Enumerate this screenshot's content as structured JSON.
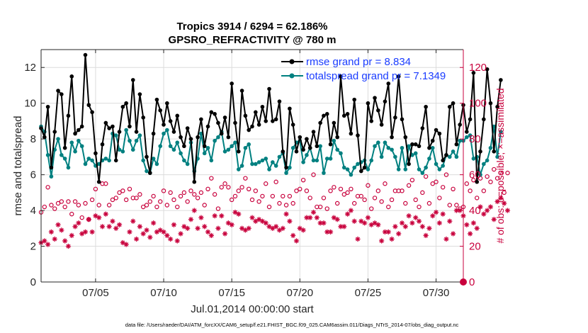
{
  "figure": {
    "title_line1": "Tropics 3914 / 6294 = 62.186%",
    "title_line2": "GPSRO_REFRACTIVITY @ 780 m",
    "footer": "data file: /Users/raeder/DAI/ATM_forcXX/CAM6_setup/f.e21.FHIST_BGC.f09_025.CAM6assim.011/Diags_NTrS_2014-07/obs_diag_output.nc"
  },
  "colors": {
    "rmse": "#000000",
    "spread": "#008080",
    "obs": "#c8003c",
    "legend_text": "#1a3cff"
  },
  "chart_data": {
    "type": "line",
    "title": "Tropics 3914 / 6294 = 62.186%",
    "subtitle": "GPSRO_REFRACTIVITY @ 780 m",
    "xlabel": "Jul.01,2014 00:00:00 start",
    "ylabel": "rmse and totalspread",
    "y2label": "# of obs: o=possible; ×=assimilated",
    "xlim": [
      1,
      32
    ],
    "ylim": [
      0,
      13
    ],
    "y2lim": [
      0,
      130
    ],
    "x_ticks": [
      5,
      10,
      15,
      20,
      25,
      30
    ],
    "x_tick_labels": [
      "07/05",
      "07/10",
      "07/15",
      "07/20",
      "07/25",
      "07/30"
    ],
    "y_ticks": [
      0,
      2,
      4,
      6,
      8,
      10,
      12
    ],
    "y2_ticks": [
      0,
      20,
      40,
      60,
      80,
      100,
      120
    ],
    "grid": true,
    "legend": [
      "rmse grand pr = 8.834",
      "totalspread grand pr = 7.1349"
    ],
    "legend_position": "top-right",
    "x_start": 1.0,
    "x_step": 0.25,
    "series": [
      {
        "name": "rmse grand pr = 8.834",
        "axis": "left",
        "marker": "filled-circle",
        "values": [
          8.6,
          8.1,
          9.8,
          6.4,
          8.4,
          10.7,
          10.5,
          7.5,
          9.3,
          11.5,
          8.3,
          8.5,
          8.7,
          12.7,
          9.9,
          9.5,
          7.2,
          5.6,
          7.7,
          8.9,
          8.6,
          8.7,
          6.8,
          8.4,
          9.8,
          10.0,
          8.7,
          11.3,
          8.4,
          10.5,
          9.2,
          7.0,
          6.1,
          8.3,
          10.2,
          9.6,
          8.8,
          10.0,
          9.0,
          8.4,
          9.3,
          8.1,
          7.6,
          8.6,
          8.0,
          5.6,
          8.1,
          9.1,
          7.6,
          8.7,
          9.5,
          9.4,
          8.9,
          8.3,
          9.2,
          8.1,
          11.1,
          8.9,
          7.3,
          10.7,
          9.3,
          8.5,
          8.7,
          9.5,
          8.8,
          9.8,
          9.0,
          10.8,
          9.0,
          9.1,
          10.1,
          7.3,
          6.4,
          9.7,
          8.8,
          7.3,
          8.1,
          7.4,
          8.0,
          7.5,
          8.4,
          7.6,
          8.9,
          9.3,
          9.4,
          7.7,
          8.9,
          8.1,
          11.5,
          9.3,
          9.4,
          8.3,
          10.2,
          8.2,
          6.2,
          6.4,
          10.0,
          9.0,
          10.3,
          9.6,
          8.8,
          10.1,
          11.1,
          8.1,
          9.2,
          11.5,
          9.1,
          8.1,
          6.6,
          7.7,
          7.7,
          7.6,
          8.6,
          9.8,
          7.5,
          7.9,
          8.5,
          8.3,
          6.8,
          7.1,
          9.8,
          10.0,
          7.7,
          8.8,
          9.9,
          8.4,
          9.1,
          11.7,
          5.6,
          7.3,
          9.1,
          11.9,
          10.0,
          7.3,
          9.8,
          11.3
        ]
      },
      {
        "name": "totalspread grand pr = 7.1349",
        "axis": "left",
        "marker": "filled-circle",
        "values": [
          8.7,
          8.4,
          7.1,
          5.9,
          7.4,
          8.0,
          7.1,
          6.9,
          6.4,
          7.8,
          7.3,
          7.9,
          7.6,
          6.6,
          6.9,
          6.8,
          6.5,
          6.6,
          6.8,
          6.9,
          6.8,
          8.3,
          8.2,
          7.4,
          7.3,
          8.5,
          7.9,
          7.4,
          7.9,
          8.2,
          6.8,
          6.2,
          6.1,
          6.9,
          6.6,
          7.6,
          8.3,
          8.5,
          7.6,
          7.4,
          7.8,
          7.2,
          6.8,
          6.6,
          7.8,
          6.2,
          6.9,
          8.3,
          7.2,
          7.5,
          6.8,
          7.9,
          8.1,
          8.4,
          7.3,
          7.4,
          7.6,
          7.8,
          6.3,
          6.5,
          7.5,
          7.7,
          6.6,
          6.6,
          6.7,
          6.8,
          6.9,
          6.3,
          6.7,
          6.5,
          7.0,
          7.2,
          6.1,
          6.4,
          7.5,
          7.8,
          7.9,
          6.7,
          7.1,
          7.5,
          6.8,
          6.8,
          7.6,
          6.1,
          6.9,
          6.9,
          7.9,
          7.4,
          7.2,
          6.4,
          6.3,
          6.0,
          6.4,
          6.6,
          6.7,
          6.8,
          6.3,
          6.8,
          7.6,
          7.8,
          7.0,
          7.8,
          7.5,
          7.4,
          7.0,
          6.3,
          7.5,
          6.3,
          7.6,
          7.1,
          7.2,
          6.3,
          6.1,
          6.4,
          6.9,
          7.5,
          6.6,
          6.3,
          6.5,
          7.1,
          7.0,
          7.3,
          7.0,
          7.9,
          7.9,
          8.1,
          8.2,
          6.9,
          7.0,
          6.0,
          6.6,
          6.8,
          7.5,
          8.7,
          7.0,
          8.4
        ]
      },
      {
        "name": "# of obs possible",
        "axis": "right",
        "marker": "open-circle",
        "values": [
          39,
          42,
          53,
          43,
          41,
          44,
          45,
          42,
          45,
          38,
          45,
          43,
          36,
          44,
          35,
          46,
          52,
          43,
          55,
          55,
          43,
          46,
          47,
          50,
          51,
          46,
          52,
          47,
          47,
          49,
          42,
          43,
          45,
          48,
          42,
          45,
          51,
          43,
          50,
          46,
          42,
          48,
          50,
          45,
          51,
          49,
          47,
          50,
          43,
          52,
          58,
          49,
          41,
          53,
          55,
          53,
          46,
          48,
          51,
          53,
          58,
          52,
          46,
          51,
          45,
          48,
          55,
          42,
          48,
          56,
          44,
          48,
          43,
          48,
          44,
          51,
          52,
          57,
          51,
          47,
          60,
          42,
          42,
          47,
          41,
          51,
          53,
          44,
          52,
          49,
          50,
          52,
          44,
          48,
          48,
          46,
          54,
          41,
          47,
          51,
          45,
          55,
          42,
          46,
          51,
          51,
          51,
          44,
          54,
          57,
          46,
          42,
          50,
          59,
          44,
          55,
          56,
          47,
          53,
          60,
          43,
          52,
          43,
          41,
          42,
          55,
          51,
          57,
          47,
          58,
          51,
          59,
          56,
          63,
          58,
          61,
          50,
          61
        ]
      },
      {
        "name": "# of obs assimilated",
        "axis": "right",
        "marker": "asterisk",
        "values": [
          22,
          23,
          21,
          28,
          24,
          32,
          29,
          23,
          20,
          26,
          31,
          33,
          27,
          28,
          35,
          28,
          37,
          36,
          31,
          38,
          31,
          34,
          30,
          32,
          22,
          21,
          28,
          34,
          24,
          31,
          27,
          29,
          25,
          33,
          28,
          29,
          28,
          26,
          24,
          32,
          23,
          27,
          31,
          30,
          35,
          40,
          30,
          36,
          31,
          28,
          26,
          37,
          30,
          37,
          27,
          33,
          32,
          39,
          38,
          30,
          29,
          30,
          36,
          34,
          35,
          34,
          33,
          31,
          30,
          31,
          29,
          30,
          38,
          34,
          26,
          23,
          30,
          29,
          36,
          36,
          39,
          36,
          33,
          33,
          28,
          28,
          36,
          35,
          31,
          31,
          38,
          40,
          34,
          24,
          34,
          33,
          36,
          32,
          33,
          32,
          23,
          28,
          28,
          24,
          31,
          27,
          33,
          31,
          37,
          33,
          36,
          34,
          31,
          26,
          30,
          37,
          39,
          33,
          38,
          24,
          34,
          27,
          40,
          40,
          37,
          32,
          27,
          33,
          30,
          42,
          38,
          40,
          42,
          35,
          45,
          47,
          44,
          40
        ]
      }
    ]
  }
}
